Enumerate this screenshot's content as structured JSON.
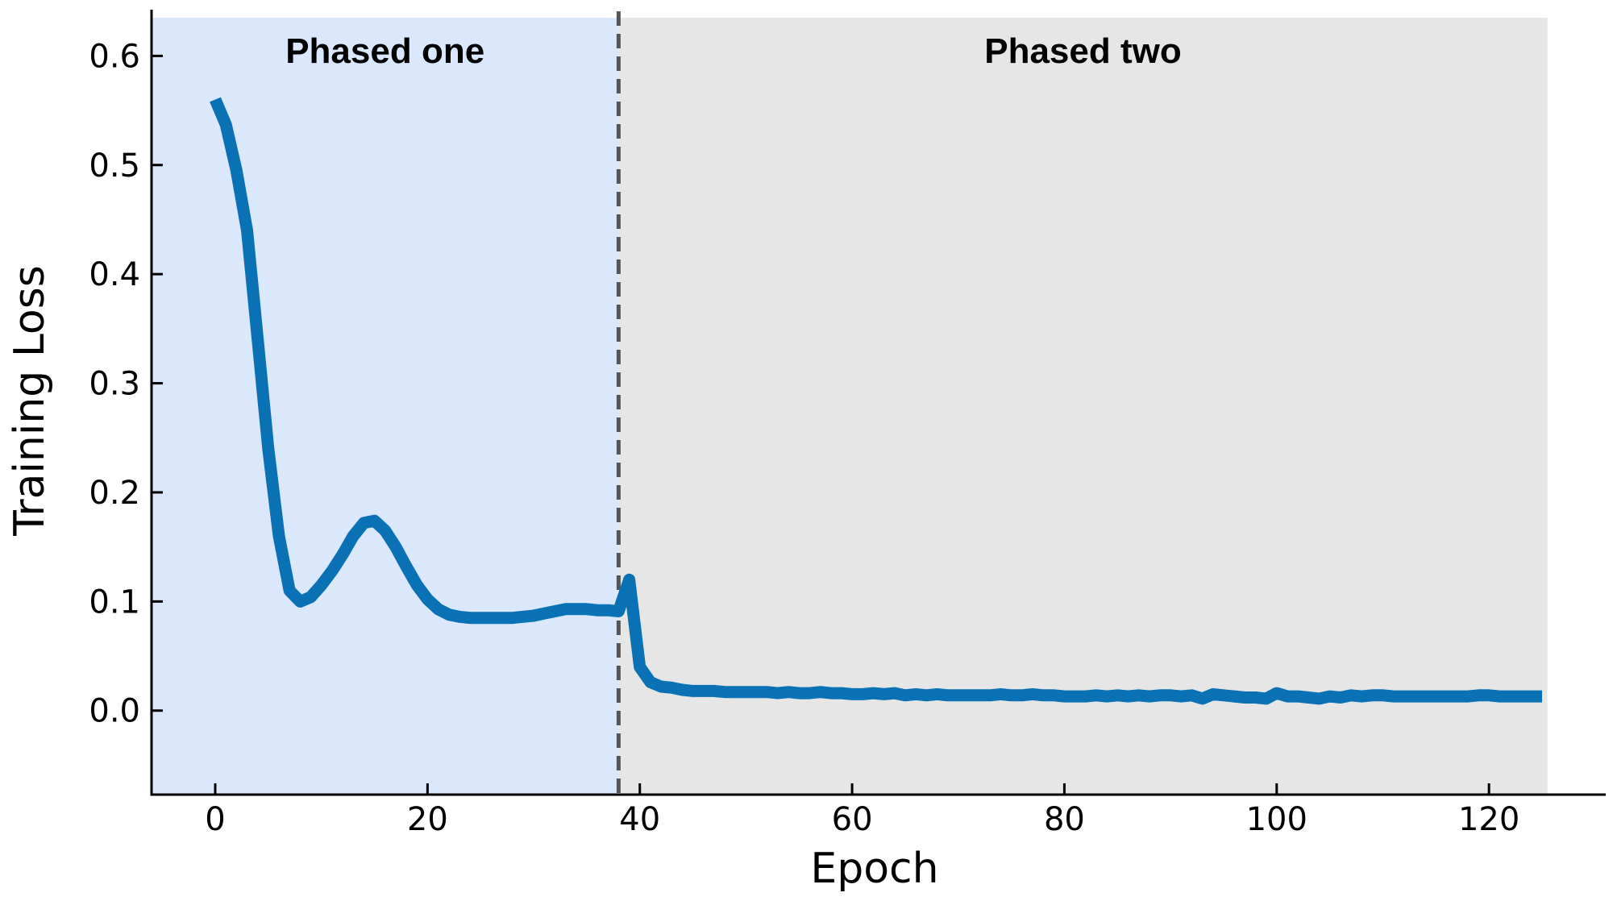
{
  "chart_data": {
    "type": "line",
    "title": "",
    "xlabel": "Epoch",
    "ylabel": "Training Loss",
    "xlim": [
      -6,
      131
    ],
    "ylim": [
      -0.077,
      0.635
    ],
    "xticks": [
      0,
      20,
      40,
      60,
      80,
      100,
      120
    ],
    "xtick_labels": [
      "0",
      "20",
      "40",
      "60",
      "80",
      "100",
      "120"
    ],
    "yticks": [
      0.0,
      0.1,
      0.2,
      0.3,
      0.4,
      0.5,
      0.6
    ],
    "ytick_labels": [
      "0.0",
      "0.1",
      "0.2",
      "0.3",
      "0.4",
      "0.5",
      "0.6"
    ],
    "grid": false,
    "regions": [
      {
        "label": "Phased one",
        "x_start": -6,
        "x_end": 38,
        "color": "#dbe7fb"
      },
      {
        "label": "Phased two",
        "x_start": 38,
        "x_end": 125.5,
        "color": "#e6e6e6"
      }
    ],
    "vline": {
      "x": 38,
      "style": "dashed",
      "color": "#555555"
    },
    "series": [
      {
        "color": "#0a72b4",
        "x": [
          0,
          1,
          2,
          3,
          4,
          5,
          6,
          7,
          8,
          9,
          10,
          11,
          12,
          13,
          14,
          15,
          16,
          17,
          18,
          19,
          20,
          21,
          22,
          23,
          24,
          25,
          26,
          27,
          28,
          29,
          30,
          31,
          32,
          33,
          34,
          35,
          36,
          37,
          38,
          39,
          40,
          41,
          42,
          43,
          44,
          45,
          46,
          47,
          48,
          49,
          50,
          51,
          52,
          53,
          54,
          55,
          56,
          57,
          58,
          59,
          60,
          61,
          62,
          63,
          64,
          65,
          66,
          67,
          68,
          69,
          70,
          71,
          72,
          73,
          74,
          75,
          76,
          77,
          78,
          79,
          80,
          81,
          82,
          83,
          84,
          85,
          86,
          87,
          88,
          89,
          90,
          91,
          92,
          93,
          94,
          95,
          96,
          97,
          98,
          99,
          100,
          101,
          102,
          103,
          104,
          105,
          106,
          107,
          108,
          109,
          110,
          111,
          112,
          113,
          114,
          115,
          116,
          117,
          118,
          119,
          120,
          121,
          122,
          123,
          124,
          125
        ],
        "y": [
          0.56,
          0.537,
          0.495,
          0.44,
          0.34,
          0.24,
          0.16,
          0.11,
          0.1,
          0.104,
          0.115,
          0.128,
          0.143,
          0.16,
          0.172,
          0.174,
          0.165,
          0.15,
          0.132,
          0.115,
          0.102,
          0.093,
          0.088,
          0.086,
          0.085,
          0.085,
          0.085,
          0.085,
          0.085,
          0.086,
          0.087,
          0.089,
          0.091,
          0.093,
          0.093,
          0.093,
          0.092,
          0.092,
          0.091,
          0.12,
          0.04,
          0.026,
          0.022,
          0.021,
          0.019,
          0.018,
          0.018,
          0.018,
          0.017,
          0.017,
          0.017,
          0.017,
          0.017,
          0.016,
          0.017,
          0.016,
          0.016,
          0.017,
          0.016,
          0.016,
          0.015,
          0.015,
          0.016,
          0.015,
          0.016,
          0.014,
          0.015,
          0.014,
          0.015,
          0.014,
          0.014,
          0.014,
          0.014,
          0.014,
          0.015,
          0.014,
          0.014,
          0.015,
          0.014,
          0.014,
          0.013,
          0.013,
          0.013,
          0.014,
          0.013,
          0.014,
          0.013,
          0.014,
          0.013,
          0.014,
          0.014,
          0.013,
          0.014,
          0.011,
          0.015,
          0.014,
          0.013,
          0.012,
          0.012,
          0.011,
          0.016,
          0.013,
          0.013,
          0.012,
          0.011,
          0.013,
          0.012,
          0.014,
          0.013,
          0.014,
          0.014,
          0.013,
          0.013,
          0.013,
          0.013,
          0.013,
          0.013,
          0.013,
          0.013,
          0.014,
          0.014,
          0.013,
          0.013,
          0.013,
          0.013,
          0.013
        ]
      }
    ]
  }
}
